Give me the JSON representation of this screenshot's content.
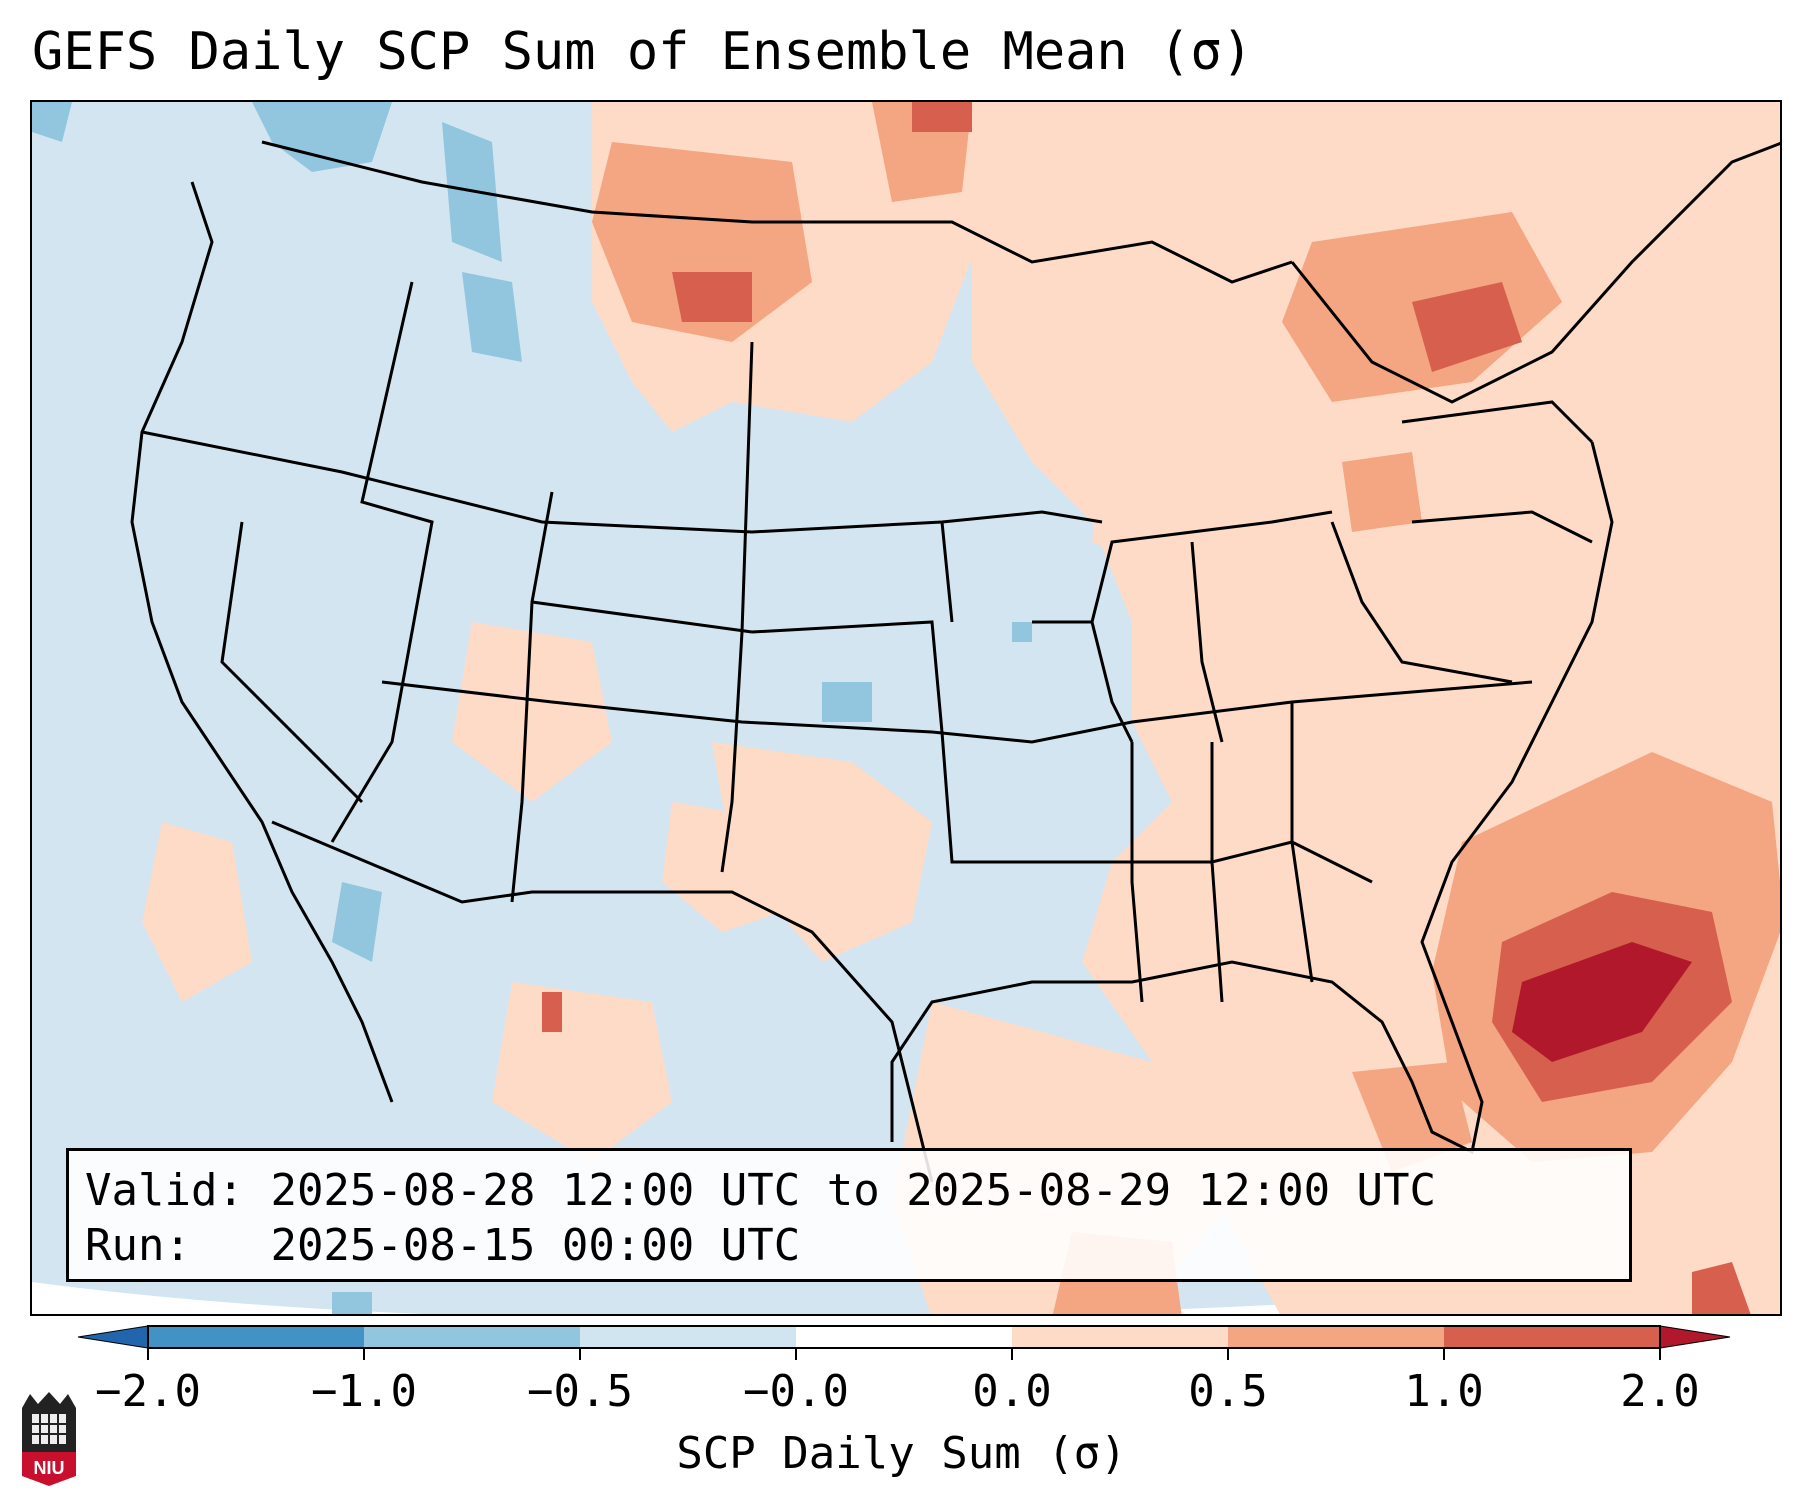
{
  "title": "GEFS Daily SCP Sum of Ensemble Mean (σ)",
  "info": {
    "valid_label": "Valid:",
    "valid_range": "2025-08-28 12:00 UTC to 2025-08-29 12:00 UTC",
    "run_label": "Run:",
    "run_time": "2025-08-15 00:00 UTC"
  },
  "colorbar": {
    "label": "SCP Daily Sum (σ)",
    "ticks": [
      "−2.0",
      "−1.0",
      "−0.5",
      "−0.0",
      "0.0",
      "0.5",
      "1.0",
      "2.0"
    ],
    "colors": [
      "#4292c6",
      "#92c5de",
      "#d1e5f0",
      "#ffffff",
      "#fddbc7",
      "#f4a582",
      "#d6604d"
    ],
    "under_color": "#2166ac",
    "over_color": "#b2182b"
  },
  "logo": {
    "text": "NIU",
    "name": "niu-logo"
  },
  "map": {
    "domain": "CONUS",
    "field": "SCP daily sum anomaly",
    "max_region": "Atlantic off Southeast US coast"
  }
}
